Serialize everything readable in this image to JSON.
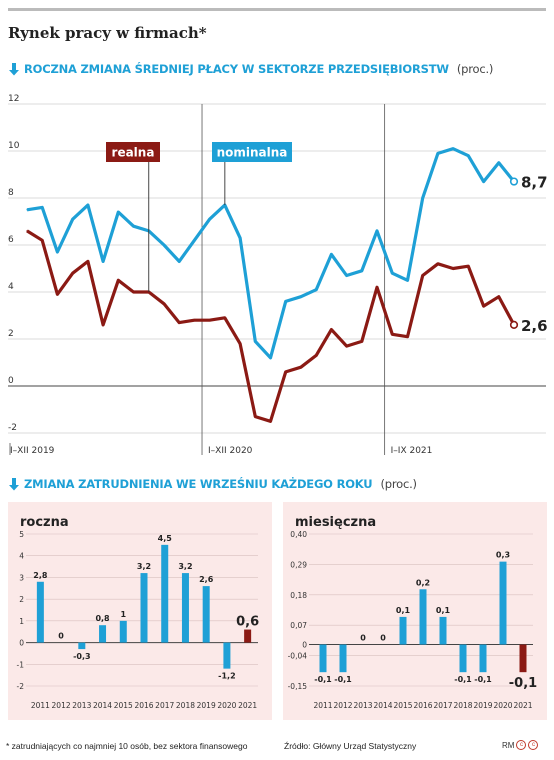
{
  "header": {
    "title": "Rynek pracy w  firmach*"
  },
  "section1": {
    "title": "ROCZNA ZMIANA ŚREDNIEJ PŁACY W SEKTORZE PRZEDSIĘBIORSTW",
    "unit": "(proc.)"
  },
  "section2": {
    "title": "ZMIANA ZATRUDNIENIA WE WRZEŚNIU KAŻDEGO ROKU",
    "unit": "(proc.)"
  },
  "footer": {
    "footnote": "* zatrudniających co najmniej 10 osób, bez sektora finansowego",
    "source": "Źródło: Główny Urząd Statystyczny",
    "author": "RM"
  },
  "colors": {
    "accent": "#1ea0d6",
    "dark_red": "#8b1a14",
    "panel_bg": "#fbe9e8"
  },
  "chart_data": [
    {
      "type": "line",
      "ylim": [
        -2,
        12
      ],
      "yticks": [
        "-2",
        "0",
        "2",
        "4",
        "6",
        "8",
        "10",
        "12"
      ],
      "period_labels": [
        "I–XII 2019",
        "I–XII 2020",
        "I–IX 2021"
      ],
      "x": [
        "2019-01",
        "2019-02",
        "2019-03",
        "2019-04",
        "2019-05",
        "2019-06",
        "2019-07",
        "2019-08",
        "2019-09",
        "2019-10",
        "2019-11",
        "2019-12",
        "2020-01",
        "2020-02",
        "2020-03",
        "2020-04",
        "2020-05",
        "2020-06",
        "2020-07",
        "2020-08",
        "2020-09",
        "2020-10",
        "2020-11",
        "2020-12",
        "2021-01",
        "2021-02",
        "2021-03",
        "2021-04",
        "2021-05",
        "2021-06",
        "2021-07",
        "2021-08",
        "2021-09"
      ],
      "series": [
        {
          "name": "nominalna",
          "color": "#1ea0d6",
          "end_label": "8,7",
          "values": [
            7.5,
            7.6,
            5.7,
            7.1,
            7.7,
            5.3,
            7.4,
            6.8,
            6.6,
            6.0,
            5.3,
            6.2,
            7.1,
            7.7,
            6.3,
            1.9,
            1.2,
            3.6,
            3.8,
            4.1,
            5.6,
            4.7,
            4.9,
            6.6,
            4.8,
            4.5,
            8.0,
            9.9,
            10.1,
            9.8,
            8.7,
            9.5,
            8.7
          ]
        },
        {
          "name": "realna",
          "color": "#8b1a14",
          "end_label": "2,6",
          "values": [
            6.6,
            6.2,
            3.9,
            4.8,
            5.3,
            2.6,
            4.5,
            4.0,
            4.0,
            3.5,
            2.7,
            2.8,
            2.8,
            2.9,
            1.8,
            -1.3,
            -1.5,
            0.6,
            0.8,
            1.3,
            2.4,
            1.7,
            1.9,
            4.2,
            2.2,
            2.1,
            4.7,
            5.2,
            5.0,
            5.1,
            3.4,
            3.8,
            2.6
          ]
        }
      ]
    },
    {
      "type": "bar",
      "title": "roczna",
      "color": "#1ea0d6",
      "highlight_color": "#8b1a14",
      "categories": [
        "2011",
        "2012",
        "2013",
        "2014",
        "2015",
        "2016",
        "2017",
        "2018",
        "2019",
        "2020",
        "2021"
      ],
      "values": [
        2.8,
        0,
        -0.3,
        0.8,
        1,
        3.2,
        4.5,
        3.2,
        2.6,
        -1.2,
        0.6
      ],
      "value_labels": [
        "2,8",
        "0",
        "-0,3",
        "0,8",
        "1",
        "3,2",
        "4,5",
        "3,2",
        "2,6",
        "-1,2",
        "0,6"
      ],
      "ylim": [
        -2,
        5
      ],
      "yticks": [
        "-2",
        "-1",
        "0",
        "1",
        "2",
        "3",
        "4",
        "5"
      ]
    },
    {
      "type": "bar",
      "title": "miesięczna",
      "color": "#1ea0d6",
      "highlight_color": "#8b1a14",
      "categories": [
        "2011",
        "2012",
        "2013",
        "2014",
        "2015",
        "2016",
        "2017",
        "2018",
        "2019",
        "2020",
        "2021"
      ],
      "values": [
        -0.1,
        -0.1,
        0,
        0,
        0.1,
        0.2,
        0.1,
        -0.1,
        -0.1,
        0.3,
        -0.1
      ],
      "value_labels": [
        "-0,1",
        "-0,1",
        "0",
        "0",
        "0,1",
        "0,2",
        "0,1",
        "-0,1",
        "-0,1",
        "0,3",
        "-0,1"
      ],
      "ylim": [
        -0.15,
        0.4
      ],
      "yticks": [
        "-0,15",
        "-0,04",
        "0",
        "0,07",
        "0,18",
        "0,29",
        "0,40"
      ],
      "ytick_values": [
        -0.15,
        -0.04,
        0,
        0.07,
        0.18,
        0.29,
        0.4
      ]
    }
  ]
}
